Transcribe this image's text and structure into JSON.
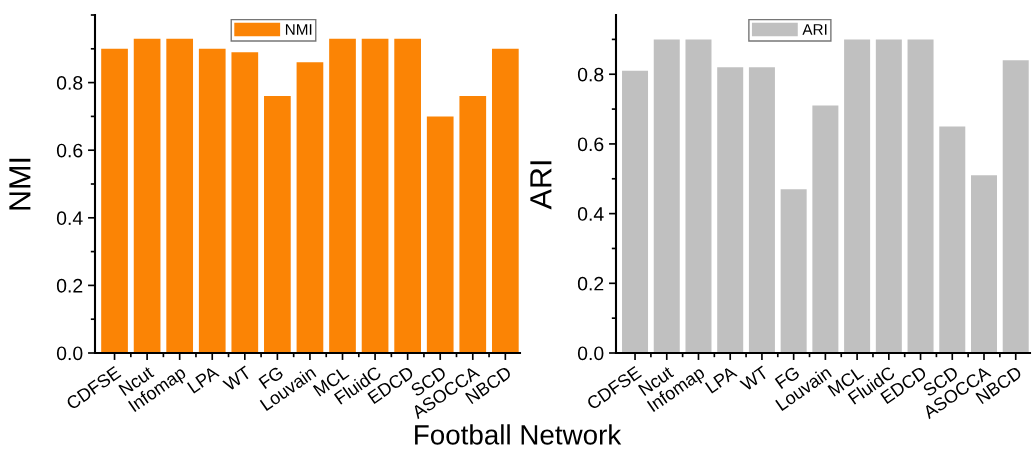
{
  "chart_data": [
    {
      "type": "bar",
      "xlabel": "Football Network",
      "ylabel": "NMI",
      "categories": [
        "CDFSE",
        "Ncut",
        "Infomap",
        "LPA",
        "WT",
        "FG",
        "Louvain",
        "MCL",
        "FluidC",
        "EDCD",
        "SCD",
        "ASOCCA",
        "NBCD"
      ],
      "series": [
        {
          "name": "NMI",
          "color": "#fb8405",
          "values": [
            0.9,
            0.93,
            0.93,
            0.9,
            0.89,
            0.76,
            0.86,
            0.93,
            0.93,
            0.93,
            0.7,
            0.76,
            0.9
          ]
        }
      ],
      "ylim": [
        0,
        1.0
      ],
      "yticks": [
        {
          "value": 0,
          "label": "0.0"
        },
        0.2,
        0.4,
        0.6,
        0.8
      ],
      "legend": "top",
      "grid": false
    },
    {
      "type": "bar",
      "ylabel": "ARI",
      "categories": [
        "CDFSE",
        "Ncut",
        "Infomap",
        "LPA",
        "WT",
        "FG",
        "Louvain",
        "MCL",
        "FluidC",
        "EDCD",
        "SCD",
        "ASOCCA",
        "NBCD"
      ],
      "series": [
        {
          "name": "ARI",
          "color": "#c0c0c0",
          "values": [
            0.81,
            0.9,
            0.9,
            0.82,
            0.82,
            0.47,
            0.71,
            0.9,
            0.9,
            0.9,
            0.65,
            0.51,
            0.84
          ]
        }
      ],
      "ylim": [
        0,
        0.97
      ],
      "yticks": [
        {
          "value": 0,
          "label": "0.0"
        },
        0.2,
        0.4,
        0.6,
        0.8
      ],
      "legend": "top",
      "grid": false
    }
  ]
}
